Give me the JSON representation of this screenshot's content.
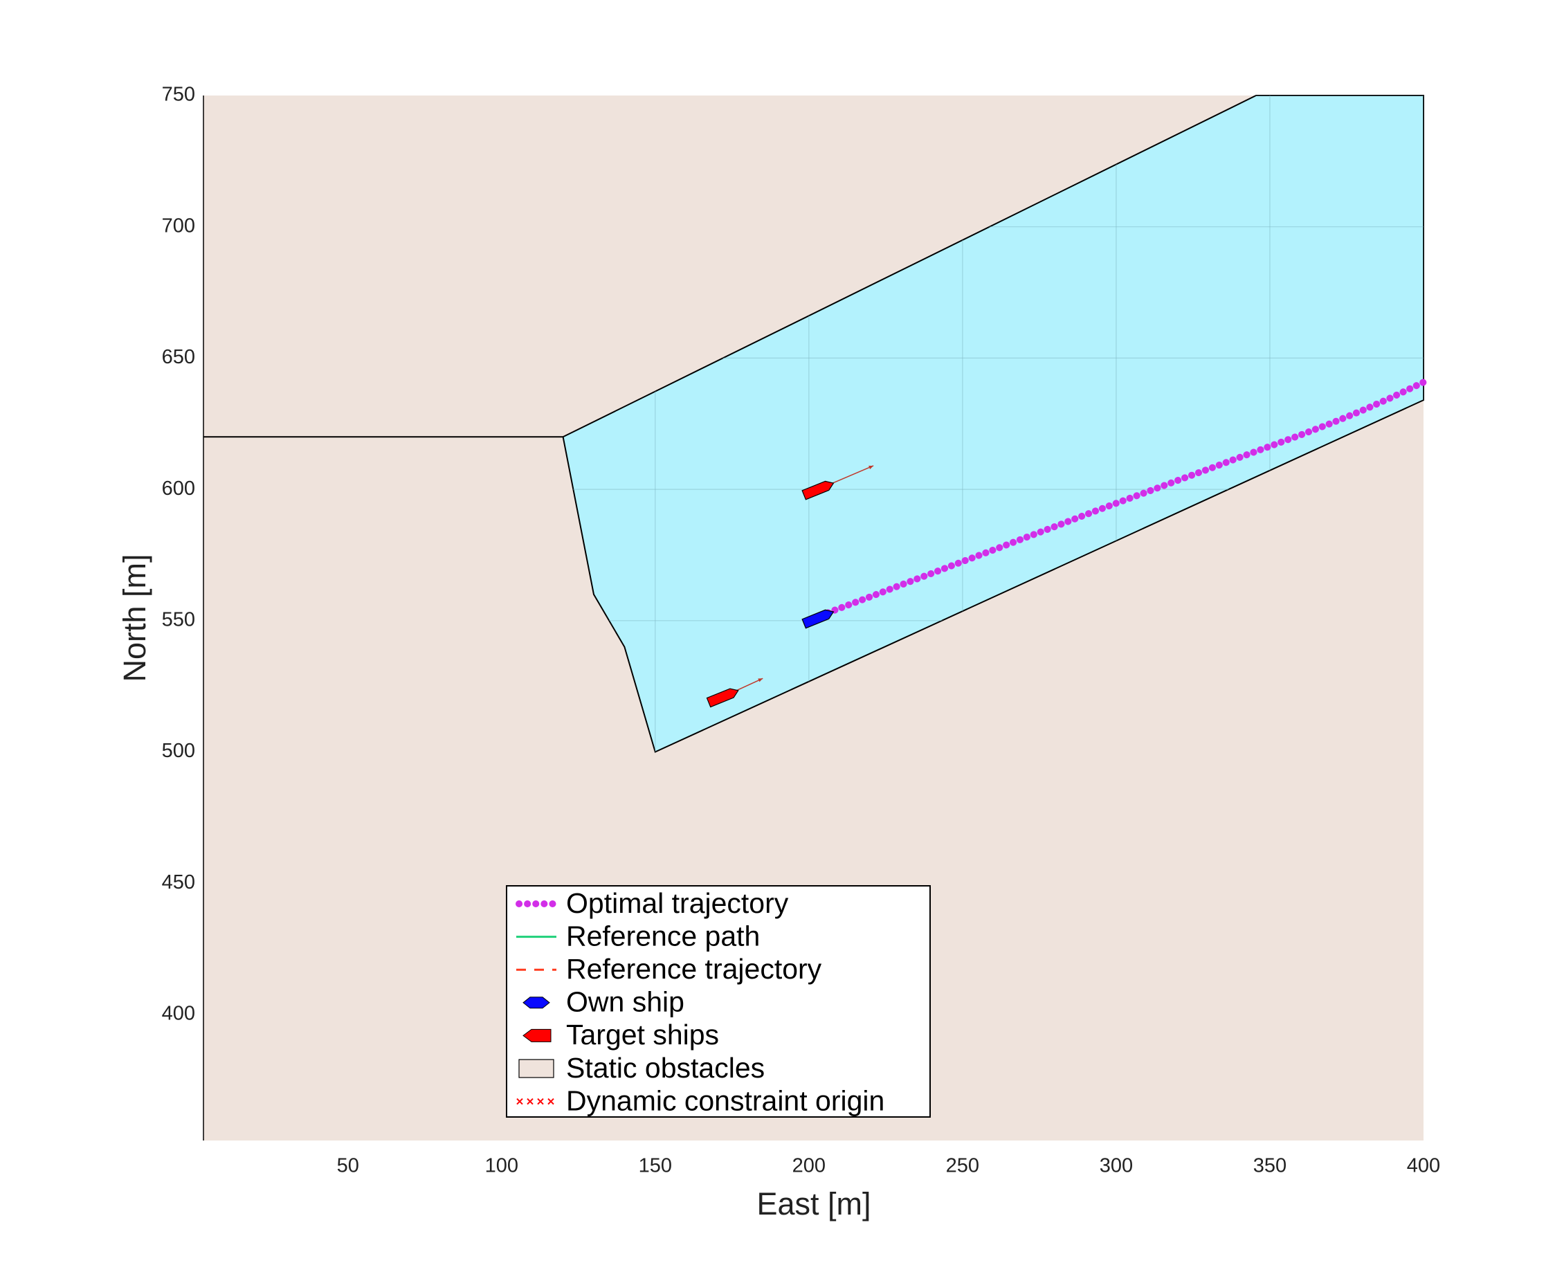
{
  "chart_data": {
    "type": "map",
    "xlabel": "East [m]",
    "ylabel": "North [m]",
    "xlim": [
      3,
      400
    ],
    "ylim": [
      352,
      750
    ],
    "xticks": [
      50,
      100,
      150,
      200,
      250,
      300,
      350,
      400
    ],
    "yticks": [
      400,
      450,
      500,
      550,
      600,
      650,
      700,
      750
    ],
    "grid": true,
    "water_color": "#b3f2fd",
    "water_boundary": {
      "x": [
        120,
        345.5,
        400,
        400,
        150,
        140,
        130
      ],
      "y": [
        620,
        750,
        750,
        634,
        500,
        540,
        560
      ]
    },
    "obstacle_line": {
      "x": [
        3,
        120
      ],
      "y": [
        620,
        620
      ]
    },
    "series": [
      {
        "name": "Optimal trajectory",
        "color": "#d22ee8",
        "x": [
          204,
          210,
          220,
          230,
          240,
          250,
          260,
          270,
          280,
          290,
          300,
          310,
          320,
          330,
          340,
          350,
          360,
          370,
          380,
          390,
          400
        ],
        "y": [
          552,
          554.7,
          559.1,
          563.6,
          568,
          572.5,
          576.9,
          581.4,
          585.8,
          590.3,
          594.7,
          599,
          603.4,
          607.7,
          612.1,
          616.4,
          620.7,
          625.2,
          630,
          635.2,
          640.8
        ]
      },
      {
        "name": "Reference path",
        "color": "#1fd07a"
      },
      {
        "name": "Reference trajectory",
        "color": "#ff3b1f"
      },
      {
        "name": "Own ship",
        "color": "#0a0aff",
        "ships": [
          {
            "x": 203,
            "y": 551,
            "heading_deg": 22
          }
        ]
      },
      {
        "name": "Target ships",
        "color": "#ff0000",
        "ships": [
          {
            "x": 203,
            "y": 600,
            "heading_deg": 22,
            "arrow_x": 221,
            "arrow_y": 609
          },
          {
            "x": 172,
            "y": 521,
            "heading_deg": 22,
            "arrow_x": 185,
            "arrow_y": 528
          }
        ]
      },
      {
        "name": "Static obstacles",
        "color": "#efe3dc"
      },
      {
        "name": "Dynamic constraint origin",
        "color": "#ff0000"
      }
    ]
  }
}
